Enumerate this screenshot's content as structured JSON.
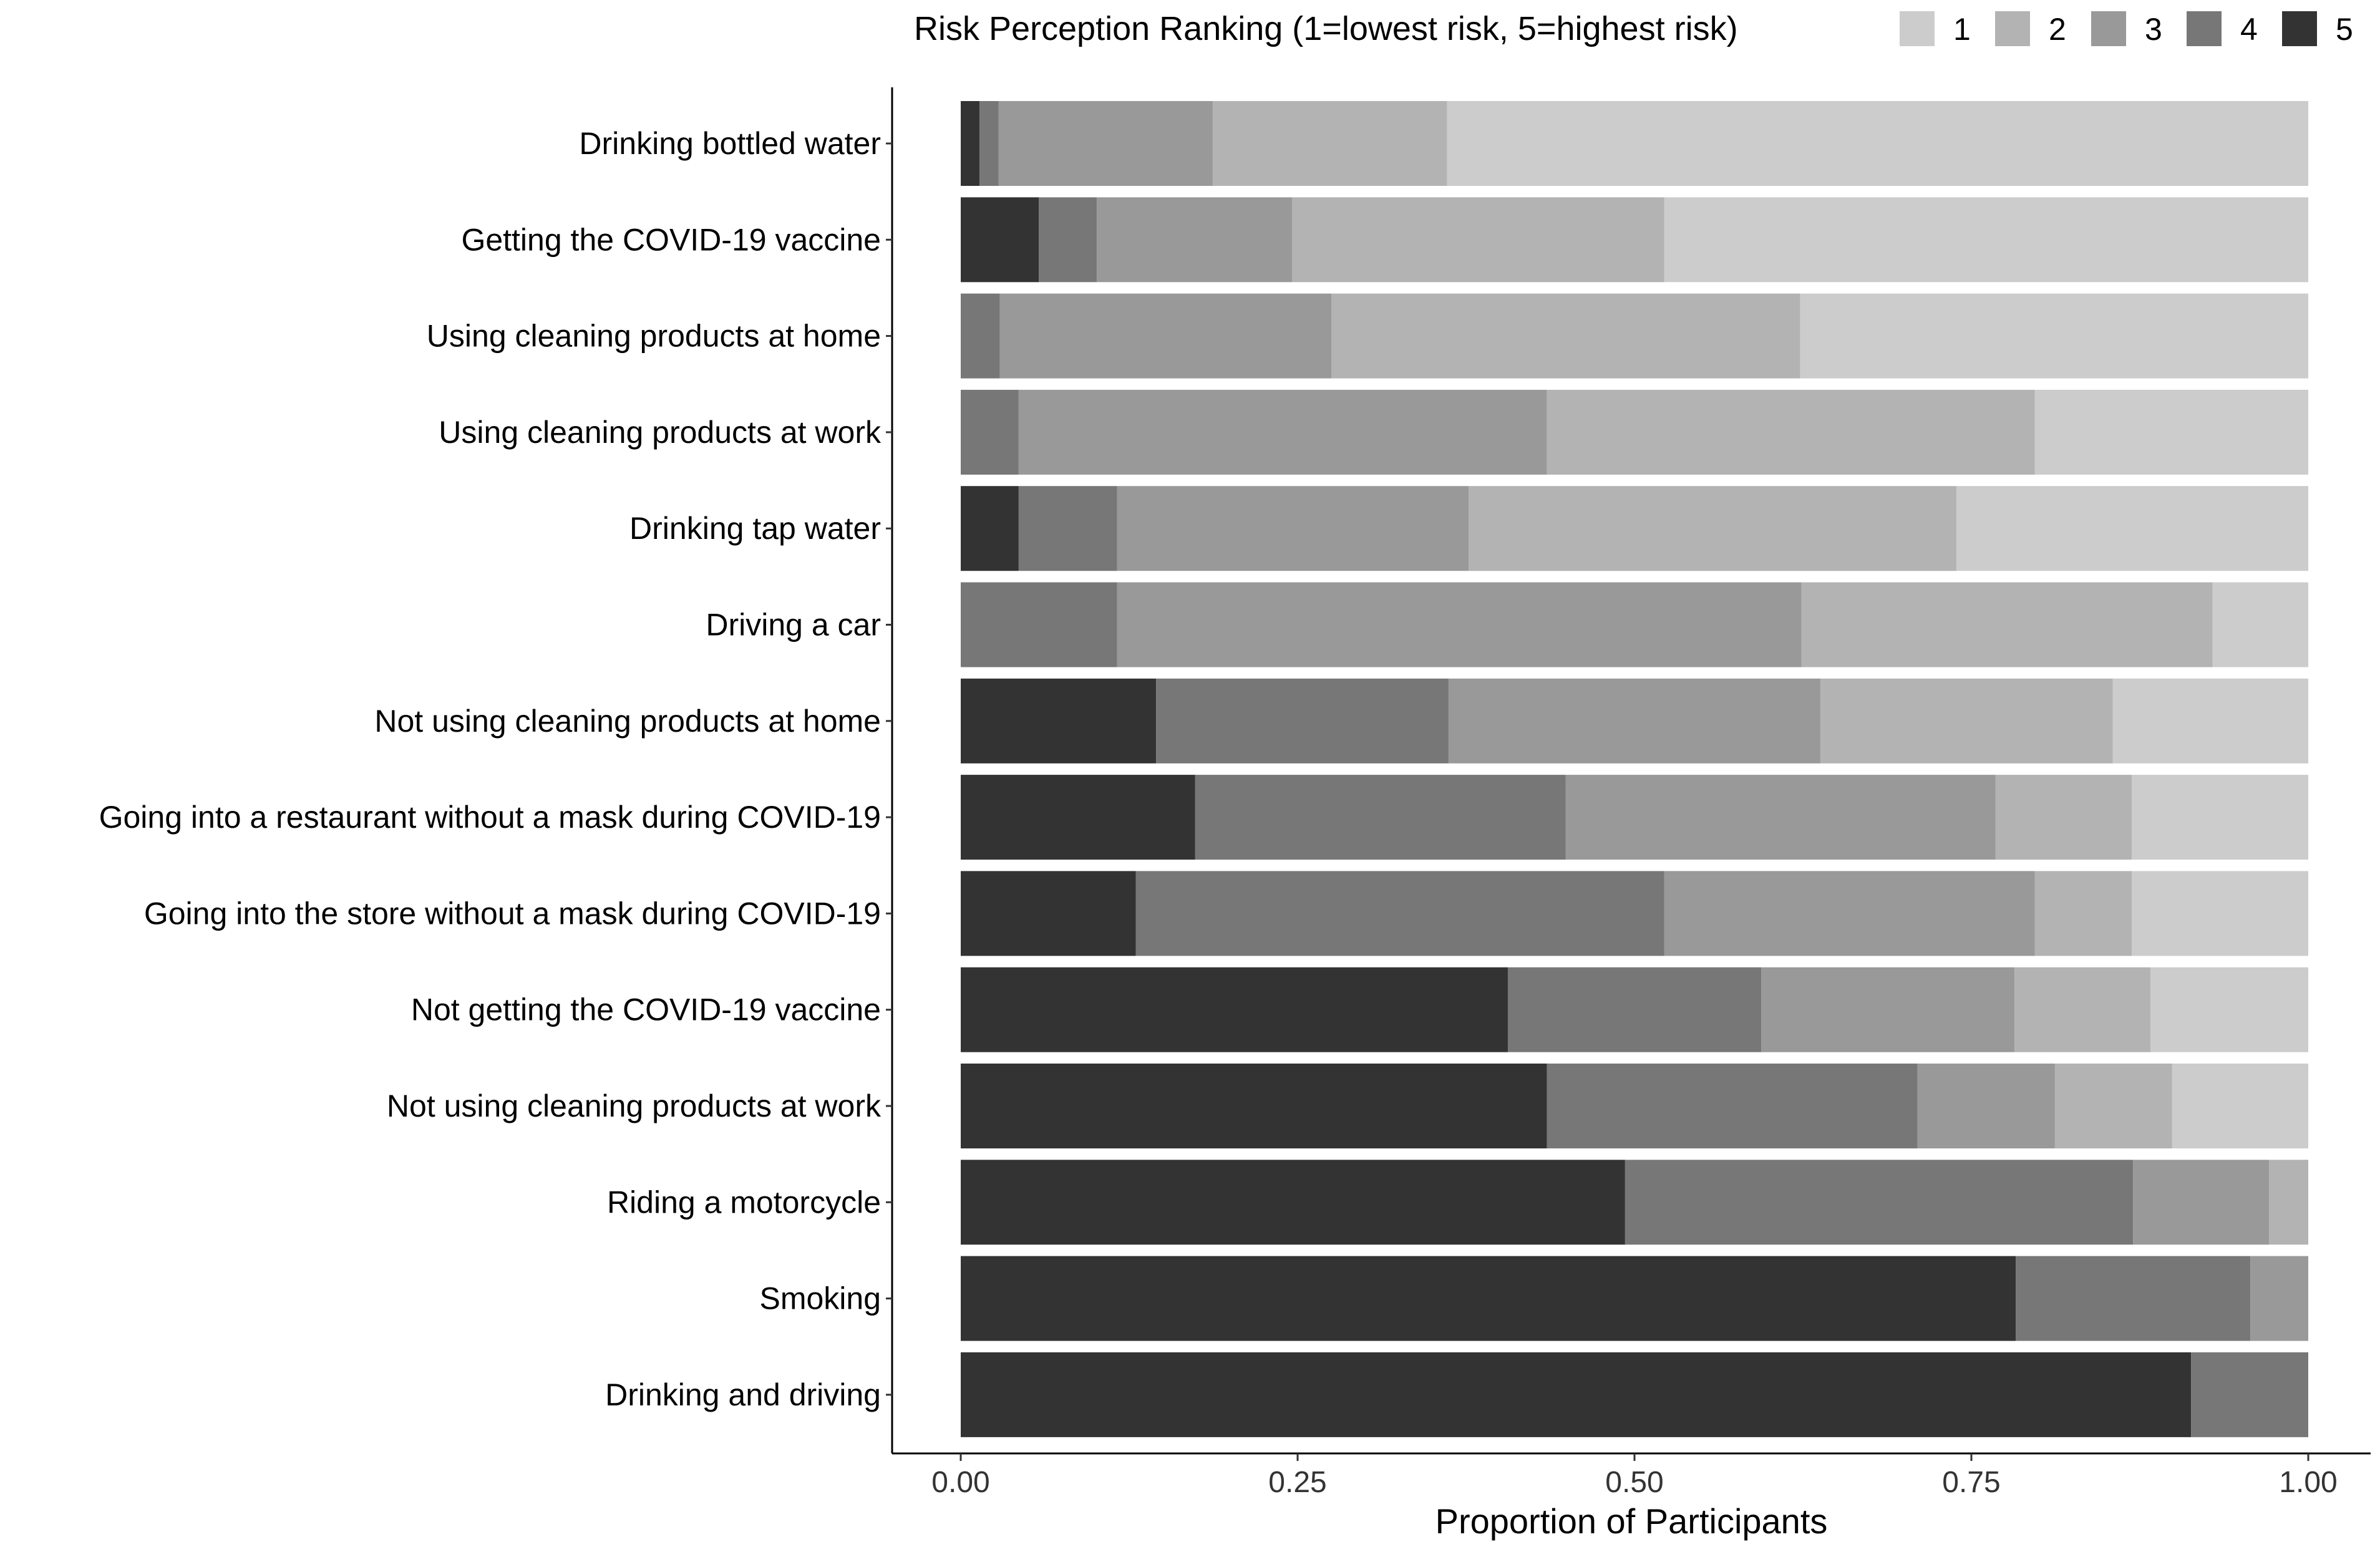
{
  "chart_data": {
    "type": "bar",
    "orientation": "horizontal",
    "stacked": true,
    "title": "",
    "xlabel": "Proportion of Participants",
    "ylabel": "",
    "xlim": [
      0,
      1
    ],
    "xticks": [
      "0.00",
      "0.25",
      "0.50",
      "0.75",
      "1.00"
    ],
    "xtick_values": [
      0,
      0.25,
      0.5,
      0.75,
      1.0
    ],
    "legend": {
      "title": "Risk Perception Ranking (1=lowest risk, 5=highest risk)",
      "position": "top",
      "labels": [
        "1",
        "2",
        "3",
        "4",
        "5"
      ]
    },
    "categories": [
      "Drinking bottled water",
      "Getting the COVID-19 vaccine",
      "Using cleaning products at home",
      "Using cleaning products at work",
      "Drinking tap water",
      "Driving a car",
      "Not using cleaning products at home",
      "Going into a restaurant without a mask during COVID-19",
      "Going into the store without a mask during COVID-19",
      "Not getting the COVID-19 vaccine",
      "Not using cleaning products at work",
      "Riding a motorcycle",
      "Smoking",
      "Drinking and driving"
    ],
    "series": [
      {
        "name": "5",
        "color": "#333333",
        "values": [
          0.014,
          0.058,
          0.0,
          0.0,
          0.043,
          0.0,
          0.145,
          0.174,
          0.13,
          0.406,
          0.435,
          0.493,
          0.783,
          0.913
        ]
      },
      {
        "name": "4",
        "color": "#777777",
        "values": [
          0.014,
          0.043,
          0.029,
          0.043,
          0.073,
          0.116,
          0.217,
          0.275,
          0.392,
          0.188,
          0.275,
          0.377,
          0.174,
          0.087
        ]
      },
      {
        "name": "3",
        "color": "#999999",
        "values": [
          0.159,
          0.145,
          0.246,
          0.392,
          0.261,
          0.508,
          0.276,
          0.319,
          0.275,
          0.188,
          0.102,
          0.101,
          0.043,
          0.0
        ]
      },
      {
        "name": "2",
        "color": "#b3b3b3",
        "values": [
          0.174,
          0.276,
          0.348,
          0.362,
          0.362,
          0.305,
          0.217,
          0.101,
          0.072,
          0.101,
          0.087,
          0.029,
          0.0,
          0.0
        ]
      },
      {
        "name": "1",
        "color": "#cccccc",
        "values": [
          0.639,
          0.478,
          0.377,
          0.203,
          0.261,
          0.071,
          0.145,
          0.131,
          0.131,
          0.117,
          0.101,
          0.0,
          0.0,
          0.0
        ]
      }
    ]
  }
}
